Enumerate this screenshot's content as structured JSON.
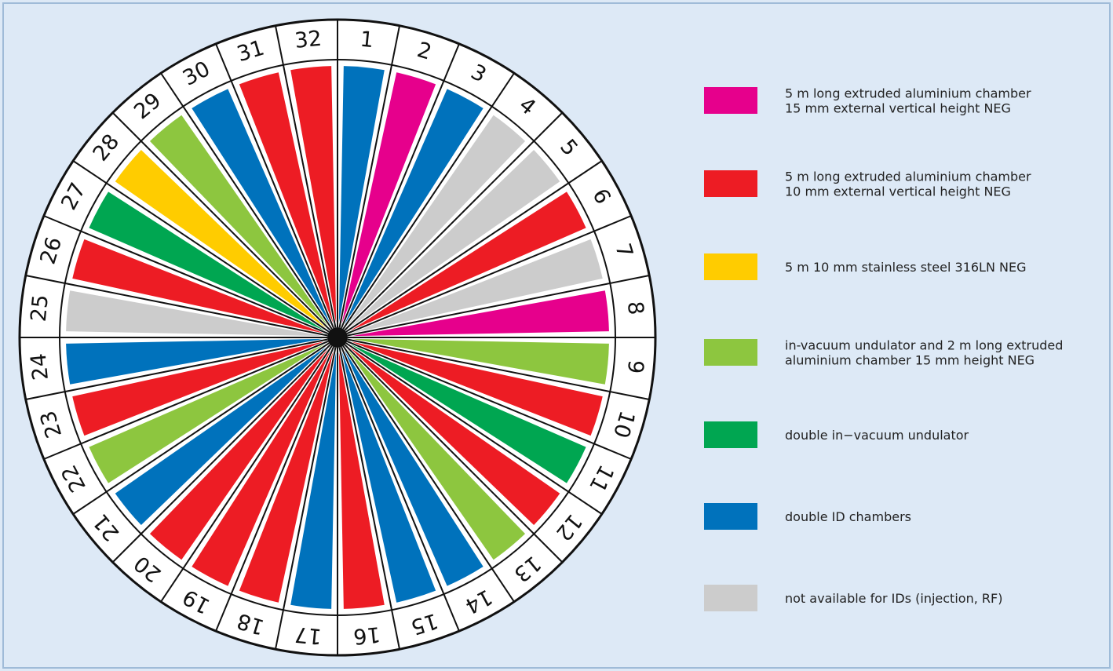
{
  "legend": [
    {
      "lines": [
        "5 m long extruded aluminium chamber",
        "15 mm external vertical height NEG"
      ],
      "color": "#e6008c"
    },
    {
      "lines": [
        "5 m long extruded aluminium chamber",
        "10 mm external vertical height NEG"
      ],
      "color": "#ed1c24"
    },
    {
      "lines": [
        "5 m 10 mm stainless steel 316LN NEG"
      ],
      "color": "#ffcc00"
    },
    {
      "lines": [
        "in-vacuum undulator and 2 m long extruded",
        "aluminium chamber 15 mm height NEG"
      ],
      "color": "#8dc63f"
    },
    {
      "lines": [
        "double in−vacuum undulator"
      ],
      "color": "#00a651"
    },
    {
      "lines": [
        "double ID chambers"
      ],
      "color": "#0072bc"
    },
    {
      "lines": [
        "not available for IDs (injection, RF)"
      ],
      "color": "#cccccc"
    }
  ],
  "sectors": [
    {
      "label": "1",
      "category": 5
    },
    {
      "label": "2",
      "category": 0
    },
    {
      "label": "3",
      "category": 5
    },
    {
      "label": "4",
      "category": 6
    },
    {
      "label": "5",
      "category": 6
    },
    {
      "label": "6",
      "category": 1
    },
    {
      "label": "7",
      "category": 6
    },
    {
      "label": "8",
      "category": 0
    },
    {
      "label": "9",
      "category": 3
    },
    {
      "label": "10",
      "category": 1
    },
    {
      "label": "11",
      "category": 4
    },
    {
      "label": "12",
      "category": 1
    },
    {
      "label": "13",
      "category": 3
    },
    {
      "label": "14",
      "category": 5
    },
    {
      "label": "15",
      "category": 5
    },
    {
      "label": "16",
      "category": 1
    },
    {
      "label": "17",
      "category": 5
    },
    {
      "label": "18",
      "category": 1
    },
    {
      "label": "19",
      "category": 1
    },
    {
      "label": "20",
      "category": 1
    },
    {
      "label": "21",
      "category": 5
    },
    {
      "label": "22",
      "category": 3
    },
    {
      "label": "23",
      "category": 1
    },
    {
      "label": "24",
      "category": 5
    },
    {
      "label": "25",
      "category": 6
    },
    {
      "label": "26",
      "category": 1
    },
    {
      "label": "27",
      "category": 4
    },
    {
      "label": "28",
      "category": 2
    },
    {
      "label": "29",
      "category": 3
    },
    {
      "label": "30",
      "category": 5
    },
    {
      "label": "31",
      "category": 1
    },
    {
      "label": "32",
      "category": 1
    }
  ]
}
